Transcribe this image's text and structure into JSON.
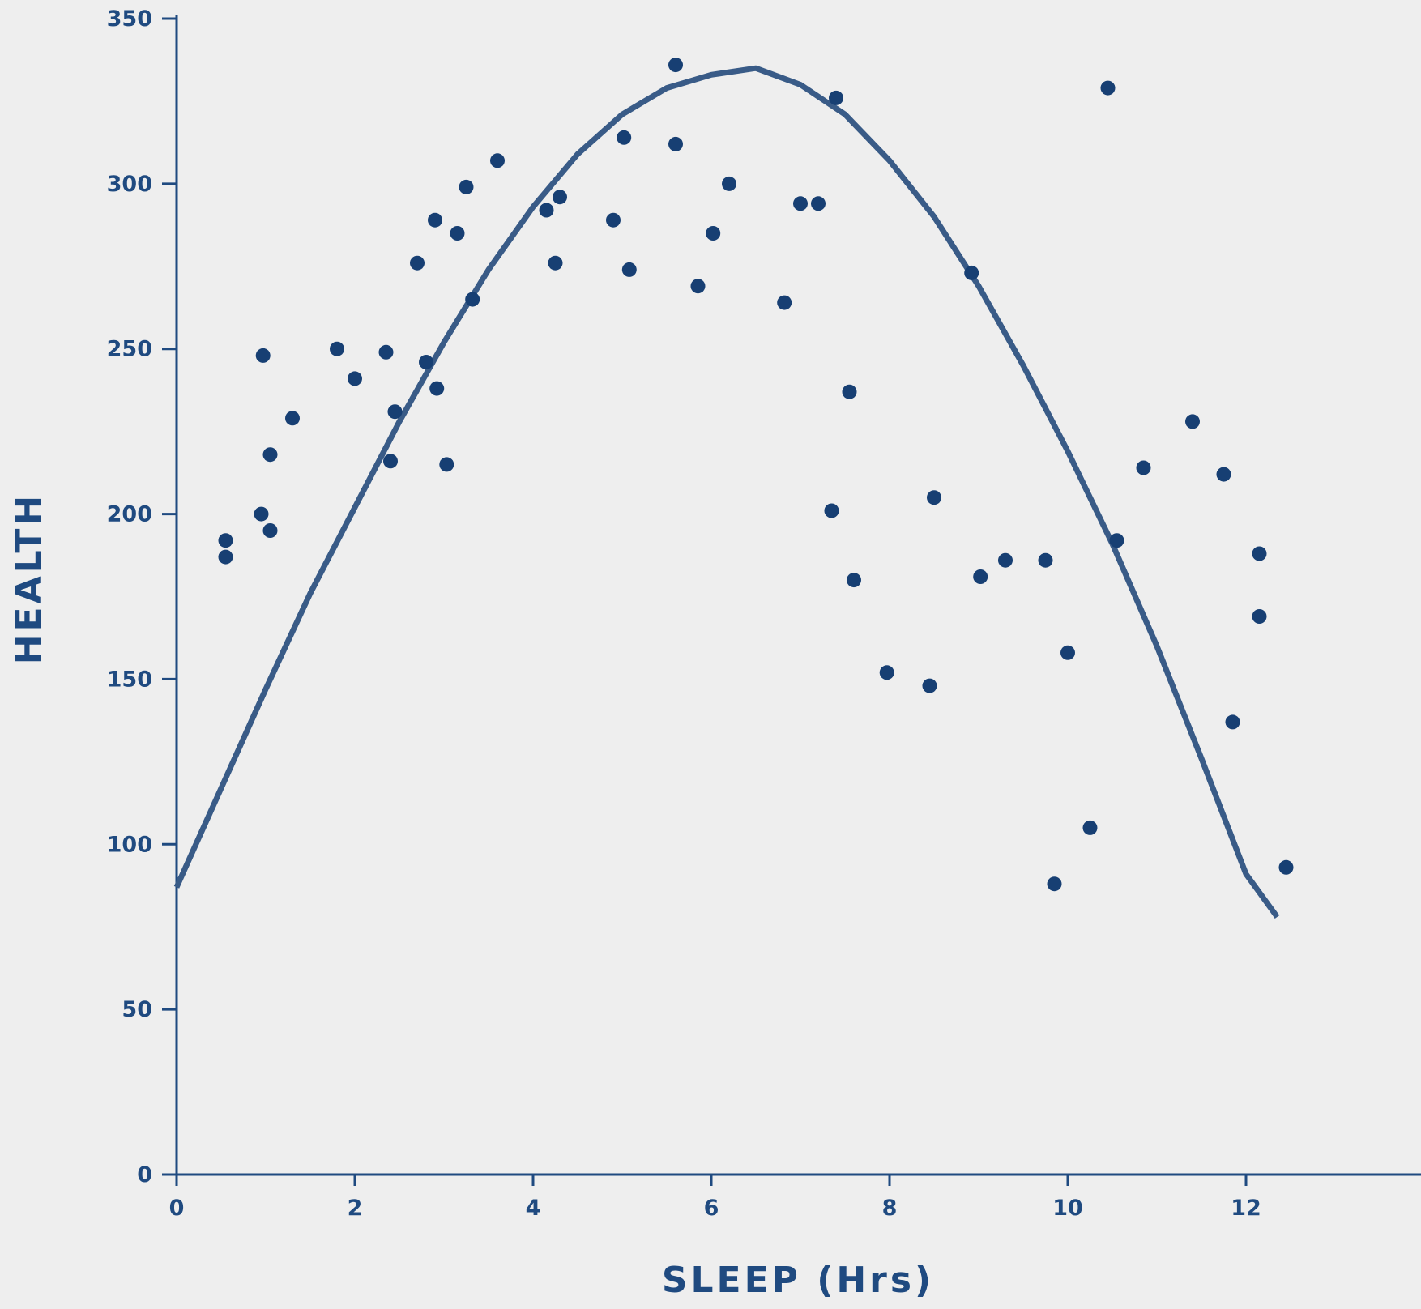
{
  "chart_data": {
    "type": "scatter",
    "xlabel": "SLEEP (Hrs)",
    "ylabel": "HEALTH",
    "xlim": [
      0,
      14
    ],
    "ylim": [
      0,
      350
    ],
    "xticks": [
      0,
      2,
      4,
      6,
      8,
      10,
      12
    ],
    "yticks": [
      0,
      50,
      100,
      150,
      200,
      250,
      300,
      350
    ],
    "grid": false,
    "colors": {
      "axis": "#1f4a80",
      "points": "#173f73",
      "fit": "#395b87",
      "background": "#eeeeee"
    },
    "points": [
      [
        0.55,
        192
      ],
      [
        0.55,
        187
      ],
      [
        0.95,
        200
      ],
      [
        0.97,
        248
      ],
      [
        1.05,
        218
      ],
      [
        1.05,
        195
      ],
      [
        1.3,
        229
      ],
      [
        1.8,
        250
      ],
      [
        2.0,
        241
      ],
      [
        2.35,
        249
      ],
      [
        2.4,
        216
      ],
      [
        2.45,
        231
      ],
      [
        2.7,
        276
      ],
      [
        2.8,
        246
      ],
      [
        2.9,
        289
      ],
      [
        2.92,
        238
      ],
      [
        3.03,
        215
      ],
      [
        3.15,
        285
      ],
      [
        3.25,
        299
      ],
      [
        3.32,
        265
      ],
      [
        3.6,
        307
      ],
      [
        4.15,
        292
      ],
      [
        4.25,
        276
      ],
      [
        4.3,
        296
      ],
      [
        4.9,
        289
      ],
      [
        5.02,
        314
      ],
      [
        5.08,
        274
      ],
      [
        5.6,
        336
      ],
      [
        5.6,
        312
      ],
      [
        5.85,
        269
      ],
      [
        6.02,
        285
      ],
      [
        6.2,
        300
      ],
      [
        6.82,
        264
      ],
      [
        7.0,
        294
      ],
      [
        7.2,
        294
      ],
      [
        7.35,
        201
      ],
      [
        7.4,
        326
      ],
      [
        7.55,
        237
      ],
      [
        7.6,
        180
      ],
      [
        7.97,
        152
      ],
      [
        8.45,
        148
      ],
      [
        8.5,
        205
      ],
      [
        8.92,
        273
      ],
      [
        9.02,
        181
      ],
      [
        9.3,
        186
      ],
      [
        9.75,
        186
      ],
      [
        9.85,
        88
      ],
      [
        10.0,
        158
      ],
      [
        10.25,
        105
      ],
      [
        10.45,
        329
      ],
      [
        10.55,
        192
      ],
      [
        10.85,
        214
      ],
      [
        11.4,
        228
      ],
      [
        11.75,
        212
      ],
      [
        11.85,
        137
      ],
      [
        12.15,
        188
      ],
      [
        12.15,
        169
      ],
      [
        12.45,
        93
      ]
    ],
    "fit_curve": [
      [
        0,
        87
      ],
      [
        0.5,
        117
      ],
      [
        1.0,
        147
      ],
      [
        1.5,
        176
      ],
      [
        2.0,
        202
      ],
      [
        2.5,
        228
      ],
      [
        3.0,
        252
      ],
      [
        3.5,
        274
      ],
      [
        4.0,
        293
      ],
      [
        4.5,
        309
      ],
      [
        5.0,
        321
      ],
      [
        5.5,
        329
      ],
      [
        6.0,
        333
      ],
      [
        6.5,
        335
      ],
      [
        7.0,
        330
      ],
      [
        7.5,
        321
      ],
      [
        8.0,
        307
      ],
      [
        8.5,
        290
      ],
      [
        9.0,
        269
      ],
      [
        9.5,
        245
      ],
      [
        10.0,
        219
      ],
      [
        10.5,
        191
      ],
      [
        11.0,
        160
      ],
      [
        11.5,
        126
      ],
      [
        12.0,
        91
      ],
      [
        12.35,
        78
      ]
    ]
  }
}
